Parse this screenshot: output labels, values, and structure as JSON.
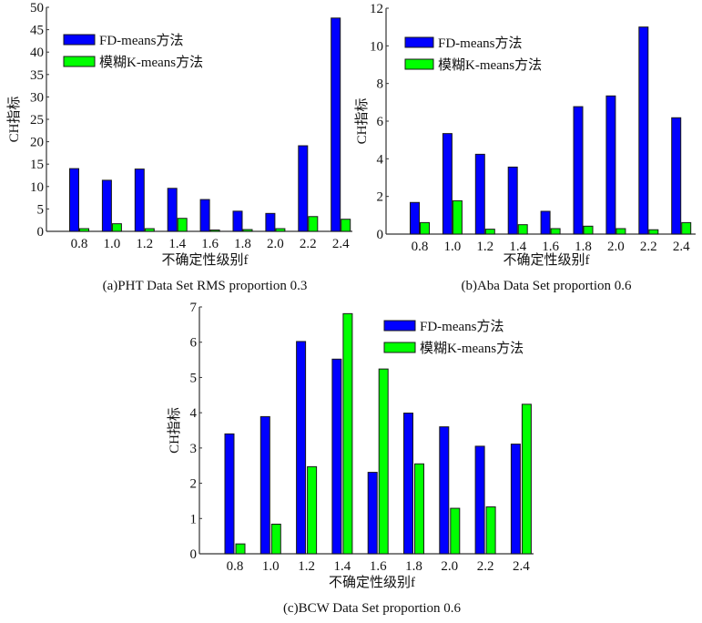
{
  "colors": {
    "fd": "#0000ff",
    "fuzzy": "#00ff00",
    "stroke": "#1a1a1a",
    "axis": "#333333"
  },
  "chart_data": [
    {
      "type": "bar",
      "title": "(a)PHT Data Set RMS proportion 0.3",
      "xlabel": "不确定性级别f",
      "ylabel": "CH指标",
      "categories": [
        "0.8",
        "1.0",
        "1.2",
        "1.4",
        "1.6",
        "1.8",
        "2.0",
        "2.2",
        "2.4"
      ],
      "ylim": [
        0,
        50
      ],
      "yticks": [
        0,
        5,
        10,
        15,
        20,
        25,
        30,
        35,
        40,
        45,
        50
      ],
      "legend_position": "top-left",
      "series": [
        {
          "name": "FD-means方法",
          "values": [
            14.0,
            11.4,
            13.9,
            9.6,
            7.1,
            4.5,
            4.0,
            19.1,
            47.6
          ]
        },
        {
          "name": "模糊K-means方法",
          "values": [
            0.6,
            1.7,
            0.6,
            2.9,
            0.3,
            0.4,
            0.6,
            3.3,
            2.7
          ]
        }
      ]
    },
    {
      "type": "bar",
      "title": "(b)Aba Data Set proportion 0.6",
      "xlabel": "不确定性级别f",
      "ylabel": "CH指标",
      "categories": [
        "0.8",
        "1.0",
        "1.2",
        "1.4",
        "1.6",
        "1.8",
        "2.0",
        "2.2",
        "2.4"
      ],
      "ylim": [
        0,
        12
      ],
      "yticks": [
        0,
        2,
        4,
        6,
        8,
        10,
        12
      ],
      "legend_position": "top-left",
      "series": [
        {
          "name": "FD-means方法",
          "values": [
            1.68,
            5.34,
            4.24,
            3.56,
            1.21,
            6.77,
            7.34,
            11.0,
            6.18
          ]
        },
        {
          "name": "模糊K-means方法",
          "values": [
            0.61,
            1.77,
            0.26,
            0.5,
            0.29,
            0.42,
            0.29,
            0.23,
            0.61
          ]
        }
      ]
    },
    {
      "type": "bar",
      "title": "(c)BCW Data Set proportion 0.6",
      "xlabel": "不确定性级别f",
      "ylabel": "CH指标",
      "categories": [
        "0.8",
        "1.0",
        "1.2",
        "1.4",
        "1.6",
        "1.8",
        "2.0",
        "2.2",
        "2.4"
      ],
      "ylim": [
        0,
        7
      ],
      "yticks": [
        0,
        1,
        2,
        3,
        4,
        5,
        6,
        7
      ],
      "legend_position": "top-right",
      "series": [
        {
          "name": "FD-means方法",
          "values": [
            3.4,
            3.89,
            6.02,
            5.52,
            2.31,
            3.99,
            3.6,
            3.05,
            3.11
          ]
        },
        {
          "name": "模糊K-means方法",
          "values": [
            0.28,
            0.84,
            2.47,
            6.81,
            5.24,
            2.55,
            1.29,
            1.33,
            4.24
          ]
        }
      ]
    }
  ]
}
